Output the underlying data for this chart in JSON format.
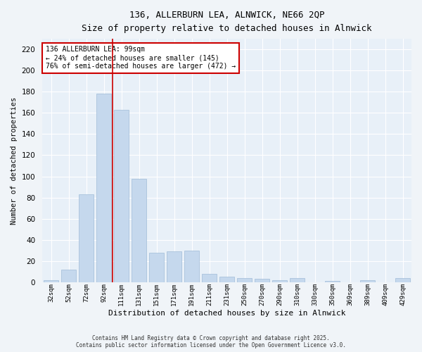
{
  "title_line1": "136, ALLERBURN LEA, ALNWICK, NE66 2QP",
  "title_line2": "Size of property relative to detached houses in Alnwick",
  "xlabel": "Distribution of detached houses by size in Alnwick",
  "ylabel": "Number of detached properties",
  "categories": [
    "32sqm",
    "52sqm",
    "72sqm",
    "92sqm",
    "111sqm",
    "131sqm",
    "151sqm",
    "171sqm",
    "191sqm",
    "211sqm",
    "231sqm",
    "250sqm",
    "270sqm",
    "290sqm",
    "310sqm",
    "330sqm",
    "350sqm",
    "369sqm",
    "389sqm",
    "409sqm",
    "429sqm"
  ],
  "values": [
    2,
    12,
    83,
    178,
    163,
    98,
    28,
    29,
    30,
    8,
    5,
    4,
    3,
    2,
    4,
    0,
    1,
    0,
    2,
    0,
    4
  ],
  "bar_color": "#c5d8ed",
  "bar_edge_color": "#a0bcd8",
  "ylim": [
    0,
    230
  ],
  "yticks": [
    0,
    20,
    40,
    60,
    80,
    100,
    120,
    140,
    160,
    180,
    200,
    220
  ],
  "vline_x": 3.5,
  "vline_color": "#cc0000",
  "annotation_text": "136 ALLERBURN LEA: 99sqm\n← 24% of detached houses are smaller (145)\n76% of semi-detached houses are larger (472) →",
  "annotation_box_color": "#ffffff",
  "annotation_box_edge": "#cc0000",
  "footer_line1": "Contains HM Land Registry data © Crown copyright and database right 2025.",
  "footer_line2": "Contains public sector information licensed under the Open Government Licence v3.0.",
  "background_color": "#f0f4f8",
  "plot_bg_color": "#e8f0f8"
}
